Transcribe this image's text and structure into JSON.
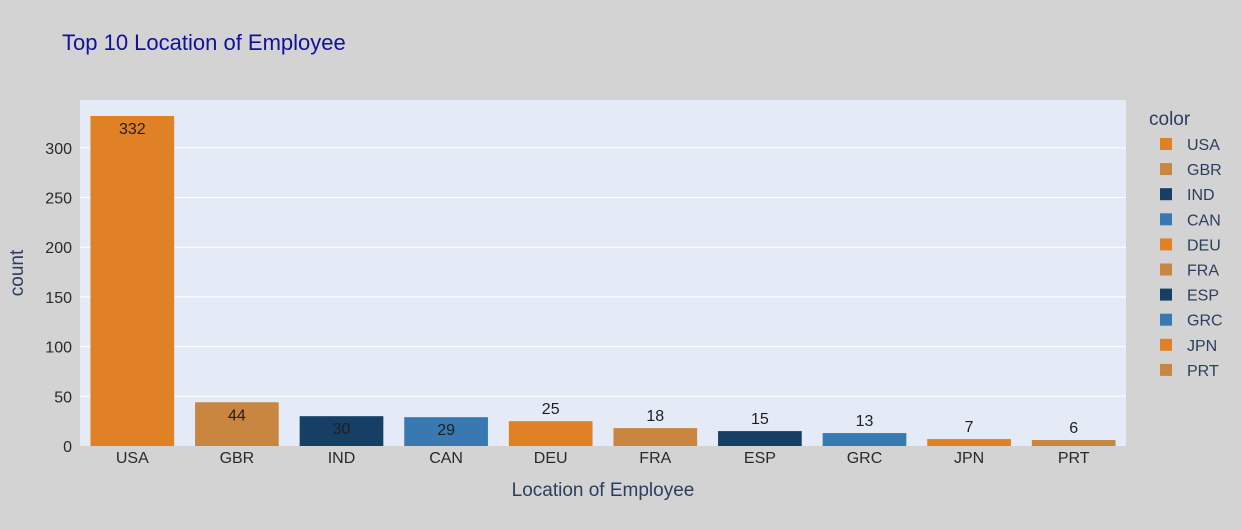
{
  "chart_data": {
    "type": "bar",
    "title": "Top 10 Location of Employee",
    "xlabel": "Location of Employee",
    "ylabel": "count",
    "categories": [
      "USA",
      "GBR",
      "IND",
      "CAN",
      "DEU",
      "FRA",
      "ESP",
      "GRC",
      "JPN",
      "PRT"
    ],
    "values": [
      332,
      44,
      30,
      29,
      25,
      18,
      15,
      13,
      7,
      6
    ],
    "data_labels": [
      "332",
      "44",
      "30",
      "29",
      "25",
      "18",
      "15",
      "13",
      "7",
      "6"
    ],
    "colors": [
      "#e08126",
      "#c98641",
      "#163f66",
      "#3779b0",
      "#e08126",
      "#c98641",
      "#163f66",
      "#3779b0",
      "#e08126",
      "#c98641"
    ],
    "ylim": [
      0,
      340
    ],
    "yticks": [
      0,
      50,
      100,
      150,
      200,
      250,
      300
    ],
    "ytick_labels": [
      "0",
      "50",
      "100",
      "150",
      "200",
      "250",
      "300"
    ],
    "grid": true,
    "legend": {
      "title": "color",
      "placement": "right",
      "entries": [
        "USA",
        "GBR",
        "IND",
        "CAN",
        "DEU",
        "FRA",
        "ESP",
        "GRC",
        "JPN",
        "PRT"
      ]
    },
    "style": {
      "page_background": "#d3d3d3",
      "plot_background": "#e5ebf6",
      "grid_color": "#ffffff",
      "title_color": "#111199",
      "text_color": "#2a3f5f"
    }
  }
}
